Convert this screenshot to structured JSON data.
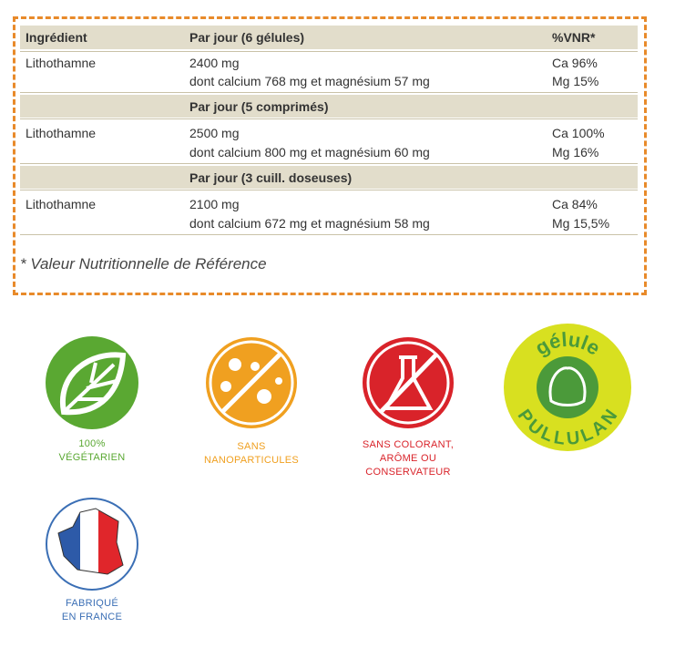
{
  "table": {
    "header": {
      "ingredient": "Ingrédient",
      "vnr": "%VNR*"
    },
    "sections": [
      {
        "heading": "Par jour (6 gélules)",
        "ingredient": "Lithothamne",
        "dose": [
          "2400 mg",
          "dont calcium 768 mg et magnésium 57 mg"
        ],
        "vnr": [
          "Ca 96%",
          "Mg 15%"
        ]
      },
      {
        "heading": "Par jour (5 comprimés)",
        "ingredient": "Lithothamne",
        "dose": [
          "2500 mg",
          "dont calcium 800 mg et magnésium 60 mg"
        ],
        "vnr": [
          "Ca 100%",
          "Mg 16%"
        ]
      },
      {
        "heading": "Par jour (3 cuill. doseuses)",
        "ingredient": "Lithothamne",
        "dose": [
          "2100 mg",
          "dont calcium 672 mg et magnésium 58 mg"
        ],
        "vnr": [
          "Ca 84%",
          "Mg 15,5%"
        ]
      }
    ],
    "footnote": "* Valeur Nutritionnelle de Référence"
  },
  "badges": [
    {
      "lines": [
        "100%",
        "VÉGÉTARIEN"
      ]
    },
    {
      "lines": [
        "SANS",
        "NANOPARTICULES"
      ]
    },
    {
      "lines": [
        "SANS COLORANT,",
        "ARÔME OU",
        "CONSERVATEUR"
      ]
    },
    {
      "icon_text": {
        "top": "gélule",
        "bottom": "PULLULAN"
      }
    },
    {
      "lines": [
        "FABRIQUÉ",
        "EN FRANCE"
      ]
    }
  ]
}
